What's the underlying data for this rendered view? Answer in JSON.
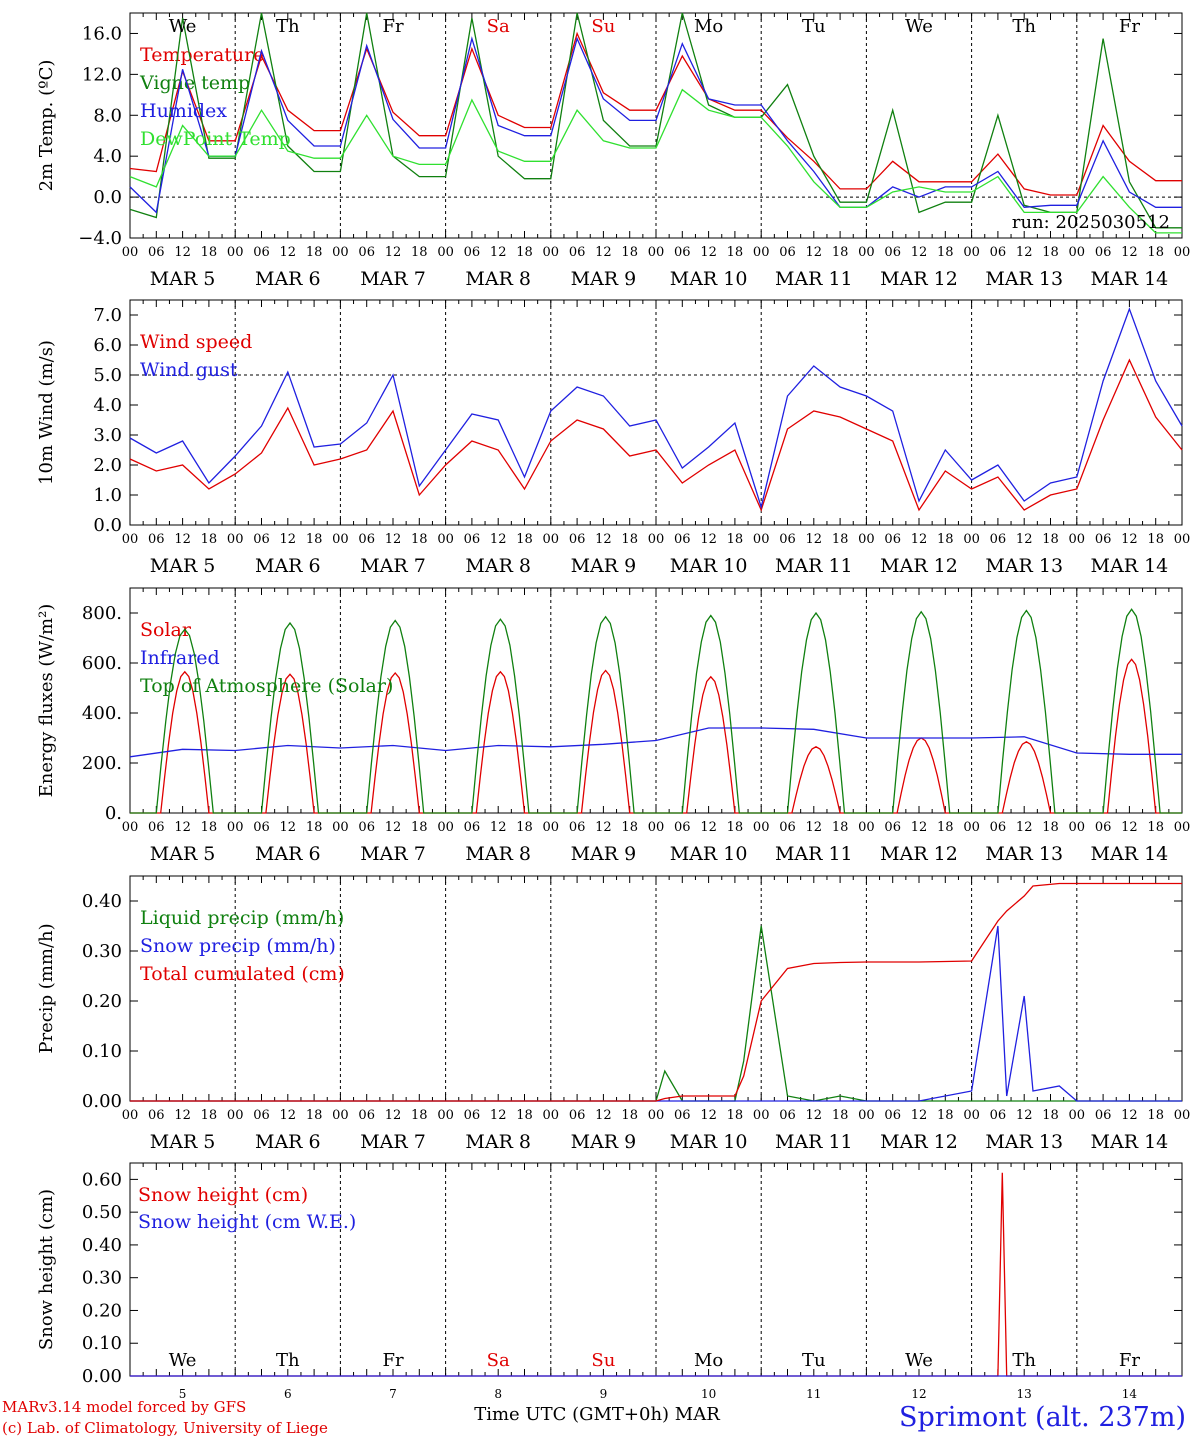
{
  "chart_data": [
    {
      "type": "line",
      "ylabel": "2m Temp. (ºC)",
      "ylim": [
        -4,
        18
      ],
      "yticks": [
        -4,
        0,
        4,
        8,
        12,
        16
      ],
      "ytick_labels": [
        "−4.0",
        "0.0",
        "4.0",
        "8.0",
        "12.0",
        "16.0"
      ],
      "day_names": [
        "We",
        "Th",
        "Fr",
        "Sa",
        "Su",
        "Mo",
        "Tu",
        "We",
        "Th",
        "Fr"
      ],
      "day_colors": [
        "#000000",
        "#000000",
        "#000000",
        "#e00000",
        "#e00000",
        "#000000",
        "#000000",
        "#000000",
        "#000000",
        "#000000"
      ],
      "annotation": "run: 2025030512",
      "zero_line": true,
      "x_hours": [
        0,
        6,
        12,
        18,
        24,
        30,
        36,
        42,
        48,
        54,
        60,
        66,
        72,
        78,
        84,
        90,
        96,
        102,
        108,
        114,
        120,
        126,
        132,
        138,
        144,
        150,
        156,
        162,
        168,
        174,
        180,
        186,
        192,
        198,
        204,
        210,
        216,
        222,
        228,
        234,
        240
      ],
      "series": [
        {
          "name": "Temperature",
          "color": "#e00000",
          "values": [
            2.8,
            2.5,
            12.3,
            5.5,
            5.5,
            13.8,
            8.5,
            6.5,
            6.5,
            14.5,
            8.3,
            6.0,
            6.0,
            14.5,
            8.0,
            6.8,
            6.8,
            16.0,
            10.2,
            8.5,
            8.5,
            13.8,
            9.6,
            8.5,
            8.5,
            5.8,
            3.5,
            0.8,
            0.8,
            3.5,
            1.5,
            1.5,
            1.5,
            4.2,
            0.8,
            0.2,
            0.2,
            7.0,
            3.5,
            1.6,
            1.6
          ]
        },
        {
          "name": "Vigne temp",
          "color": "#108010",
          "values": [
            -1.2,
            -2.0,
            17.5,
            3.8,
            3.8,
            18.0,
            5.0,
            2.5,
            2.5,
            18.0,
            4.0,
            2.0,
            2.0,
            17.5,
            4.0,
            1.8,
            1.8,
            18.0,
            7.5,
            5.0,
            5.0,
            18.0,
            9.0,
            7.8,
            7.8,
            11.0,
            4.0,
            -0.5,
            -0.5,
            8.5,
            -1.5,
            -0.5,
            -0.5,
            8.0,
            -0.8,
            -1.5,
            -1.5,
            15.5,
            1.5,
            -3.0,
            -3.0
          ]
        },
        {
          "name": "Humidex",
          "color": "#2020e0",
          "values": [
            1.0,
            -1.5,
            12.5,
            4.0,
            4.0,
            14.3,
            7.5,
            5.0,
            5.0,
            14.8,
            7.6,
            4.8,
            4.8,
            15.5,
            7.0,
            6.0,
            6.0,
            15.5,
            9.6,
            7.5,
            7.5,
            15.0,
            9.6,
            9.0,
            9.0,
            5.5,
            2.5,
            -1.0,
            -1.0,
            1.0,
            0.0,
            1.0,
            1.0,
            2.5,
            -1.0,
            -0.8,
            -0.8,
            5.5,
            0.5,
            -1.0,
            -1.0
          ]
        },
        {
          "name": "DewPoint Temp",
          "color": "#30e030",
          "values": [
            2.0,
            1.0,
            7.0,
            4.0,
            4.0,
            8.5,
            4.5,
            3.8,
            3.8,
            8.0,
            4.0,
            3.2,
            3.2,
            9.5,
            4.5,
            3.5,
            3.5,
            8.5,
            5.5,
            4.8,
            4.8,
            10.5,
            8.5,
            7.8,
            7.8,
            5.0,
            1.5,
            -1.0,
            -1.0,
            0.5,
            1.0,
            0.5,
            0.5,
            2.0,
            -1.5,
            -1.5,
            -1.5,
            2.0,
            -1.0,
            -3.5,
            -3.5
          ]
        }
      ]
    },
    {
      "type": "line",
      "ylabel": "10m Wind (m/s)",
      "ylim": [
        0,
        7.5
      ],
      "yticks": [
        0,
        1,
        2,
        3,
        4,
        5,
        6,
        7
      ],
      "ytick_labels": [
        "0.0",
        "1.0",
        "2.0",
        "3.0",
        "4.0",
        "5.0",
        "6.0",
        "7.0"
      ],
      "ref_line": 5.0,
      "x_hours": [
        0,
        6,
        12,
        18,
        24,
        30,
        36,
        42,
        48,
        54,
        60,
        66,
        72,
        78,
        84,
        90,
        96,
        102,
        108,
        114,
        120,
        126,
        132,
        138,
        144,
        150,
        156,
        162,
        168,
        174,
        180,
        186,
        192,
        198,
        204,
        210,
        216,
        222,
        228,
        234,
        240
      ],
      "series": [
        {
          "name": "Wind speed",
          "color": "#e00000",
          "values": [
            2.2,
            1.8,
            2.0,
            1.2,
            1.7,
            2.4,
            3.9,
            2.0,
            2.2,
            2.5,
            3.8,
            1.0,
            2.0,
            2.8,
            2.5,
            1.2,
            2.8,
            3.5,
            3.2,
            2.3,
            2.5,
            1.4,
            2.0,
            2.5,
            0.5,
            3.2,
            3.8,
            3.6,
            3.2,
            2.8,
            0.5,
            1.8,
            1.2,
            1.6,
            0.5,
            1.0,
            1.2,
            3.5,
            5.5,
            3.6,
            2.5
          ]
        },
        {
          "name": "Wind gust",
          "color": "#2020e0",
          "values": [
            2.9,
            2.4,
            2.8,
            1.4,
            2.3,
            3.3,
            5.1,
            2.6,
            2.7,
            3.4,
            5.0,
            1.3,
            2.5,
            3.7,
            3.5,
            1.6,
            3.8,
            4.6,
            4.3,
            3.3,
            3.5,
            1.9,
            2.6,
            3.4,
            0.6,
            4.3,
            5.3,
            4.6,
            4.3,
            3.8,
            0.8,
            2.5,
            1.5,
            2.0,
            0.8,
            1.4,
            1.6,
            4.8,
            7.2,
            4.8,
            3.3
          ]
        }
      ]
    },
    {
      "type": "line",
      "ylabel": "Energy fluxes (W/m²)",
      "ylim": [
        0,
        900
      ],
      "yticks": [
        0,
        200,
        400,
        600,
        800
      ],
      "ytick_labels": [
        "0.",
        "200.",
        "400.",
        "600.",
        "800."
      ],
      "solar_peaks": [
        565,
        555,
        560,
        565,
        570,
        545,
        265,
        300,
        285,
        615
      ],
      "toa_peaks": [
        735,
        760,
        770,
        775,
        785,
        790,
        800,
        805,
        810,
        815
      ],
      "x_hours": [
        0,
        12,
        24,
        36,
        48,
        60,
        72,
        84,
        96,
        108,
        120,
        132,
        144,
        156,
        168,
        180,
        192,
        204,
        216,
        228,
        240
      ],
      "series": [
        {
          "name": "Solar",
          "color": "#e00000",
          "values": []
        },
        {
          "name": "Infrared",
          "color": "#2020e0",
          "values": [
            225,
            255,
            250,
            270,
            260,
            270,
            250,
            270,
            265,
            275,
            290,
            340,
            340,
            335,
            300,
            300,
            300,
            305,
            240,
            235,
            235
          ]
        },
        {
          "name": "Top of Atmosphere (Solar)",
          "color": "#108010",
          "values": []
        }
      ]
    },
    {
      "type": "line",
      "ylabel": "Precip (mm/h)",
      "ylim": [
        0,
        0.45
      ],
      "yticks": [
        0,
        0.1,
        0.2,
        0.3,
        0.4
      ],
      "ytick_labels": [
        "0.00",
        "0.10",
        "0.20",
        "0.30",
        "0.40"
      ],
      "x_hours": [
        0,
        96,
        120,
        122,
        126,
        138,
        140,
        144,
        150,
        156,
        162,
        168,
        180,
        192,
        198,
        200,
        204,
        206,
        212,
        216,
        240
      ],
      "series": [
        {
          "name": "Liquid precip (mm/h)",
          "color": "#108010",
          "values": [
            0,
            0,
            0,
            0.06,
            0,
            0,
            0.08,
            0.35,
            0.01,
            0,
            0.01,
            0,
            0,
            0,
            0,
            0,
            0,
            0,
            0,
            0,
            0
          ]
        },
        {
          "name": "Snow precip (mm/h)",
          "color": "#2020e0",
          "values": [
            0,
            0,
            0,
            0,
            0,
            0,
            0,
            0,
            0,
            0,
            0,
            0,
            0,
            0.02,
            0.35,
            0.01,
            0.21,
            0.02,
            0.03,
            0,
            0
          ]
        },
        {
          "name": "Total cumulated (cm)",
          "color": "#e00000",
          "values": [
            0,
            0,
            0,
            0.005,
            0.01,
            0.01,
            0.05,
            0.2,
            0.265,
            0.275,
            0.277,
            0.278,
            0.278,
            0.28,
            0.36,
            0.38,
            0.41,
            0.43,
            0.435,
            0.435,
            0.435
          ]
        }
      ]
    },
    {
      "type": "line",
      "ylabel": "Snow height (cm)",
      "ylim": [
        0,
        0.65
      ],
      "yticks": [
        0,
        0.1,
        0.2,
        0.3,
        0.4,
        0.5,
        0.6
      ],
      "ytick_labels": [
        "0.00",
        "0.10",
        "0.20",
        "0.30",
        "0.40",
        "0.50",
        "0.60"
      ],
      "day_names": [
        "We",
        "Th",
        "Fr",
        "Sa",
        "Su",
        "Mo",
        "Tu",
        "We",
        "Th",
        "Fr"
      ],
      "day_colors": [
        "#000000",
        "#000000",
        "#000000",
        "#e00000",
        "#e00000",
        "#000000",
        "#000000",
        "#000000",
        "#000000",
        "#000000"
      ],
      "day_numbers": [
        "5",
        "6",
        "7",
        "8",
        "9",
        "10",
        "11",
        "12",
        "13",
        "14"
      ],
      "x_hours": [
        0,
        198,
        199,
        200,
        240
      ],
      "series": [
        {
          "name": "Snow height (cm)",
          "color": "#e00000",
          "values": [
            0,
            0,
            0.62,
            0,
            0
          ]
        },
        {
          "name": "Snow height (cm W.E.)",
          "color": "#2020e0",
          "values": [
            0,
            0,
            0,
            0,
            0
          ]
        }
      ]
    }
  ],
  "x_axis": {
    "hour_labels": [
      "00",
      "06",
      "12",
      "18"
    ],
    "final_label": "00",
    "dates": [
      "MAR  5",
      "MAR  6",
      "MAR  7",
      "MAR  8",
      "MAR  9",
      "MAR 10",
      "MAR 11",
      "MAR 12",
      "MAR 13",
      "MAR 14"
    ]
  },
  "footer": {
    "model_line": "MARv3.14 model forced by GFS",
    "credit_line": "(c) Lab. of Climatology, University of Liege",
    "xlabel": "Time UTC (GMT+0h) MAR",
    "station": "Sprimont (alt. 237m)"
  }
}
